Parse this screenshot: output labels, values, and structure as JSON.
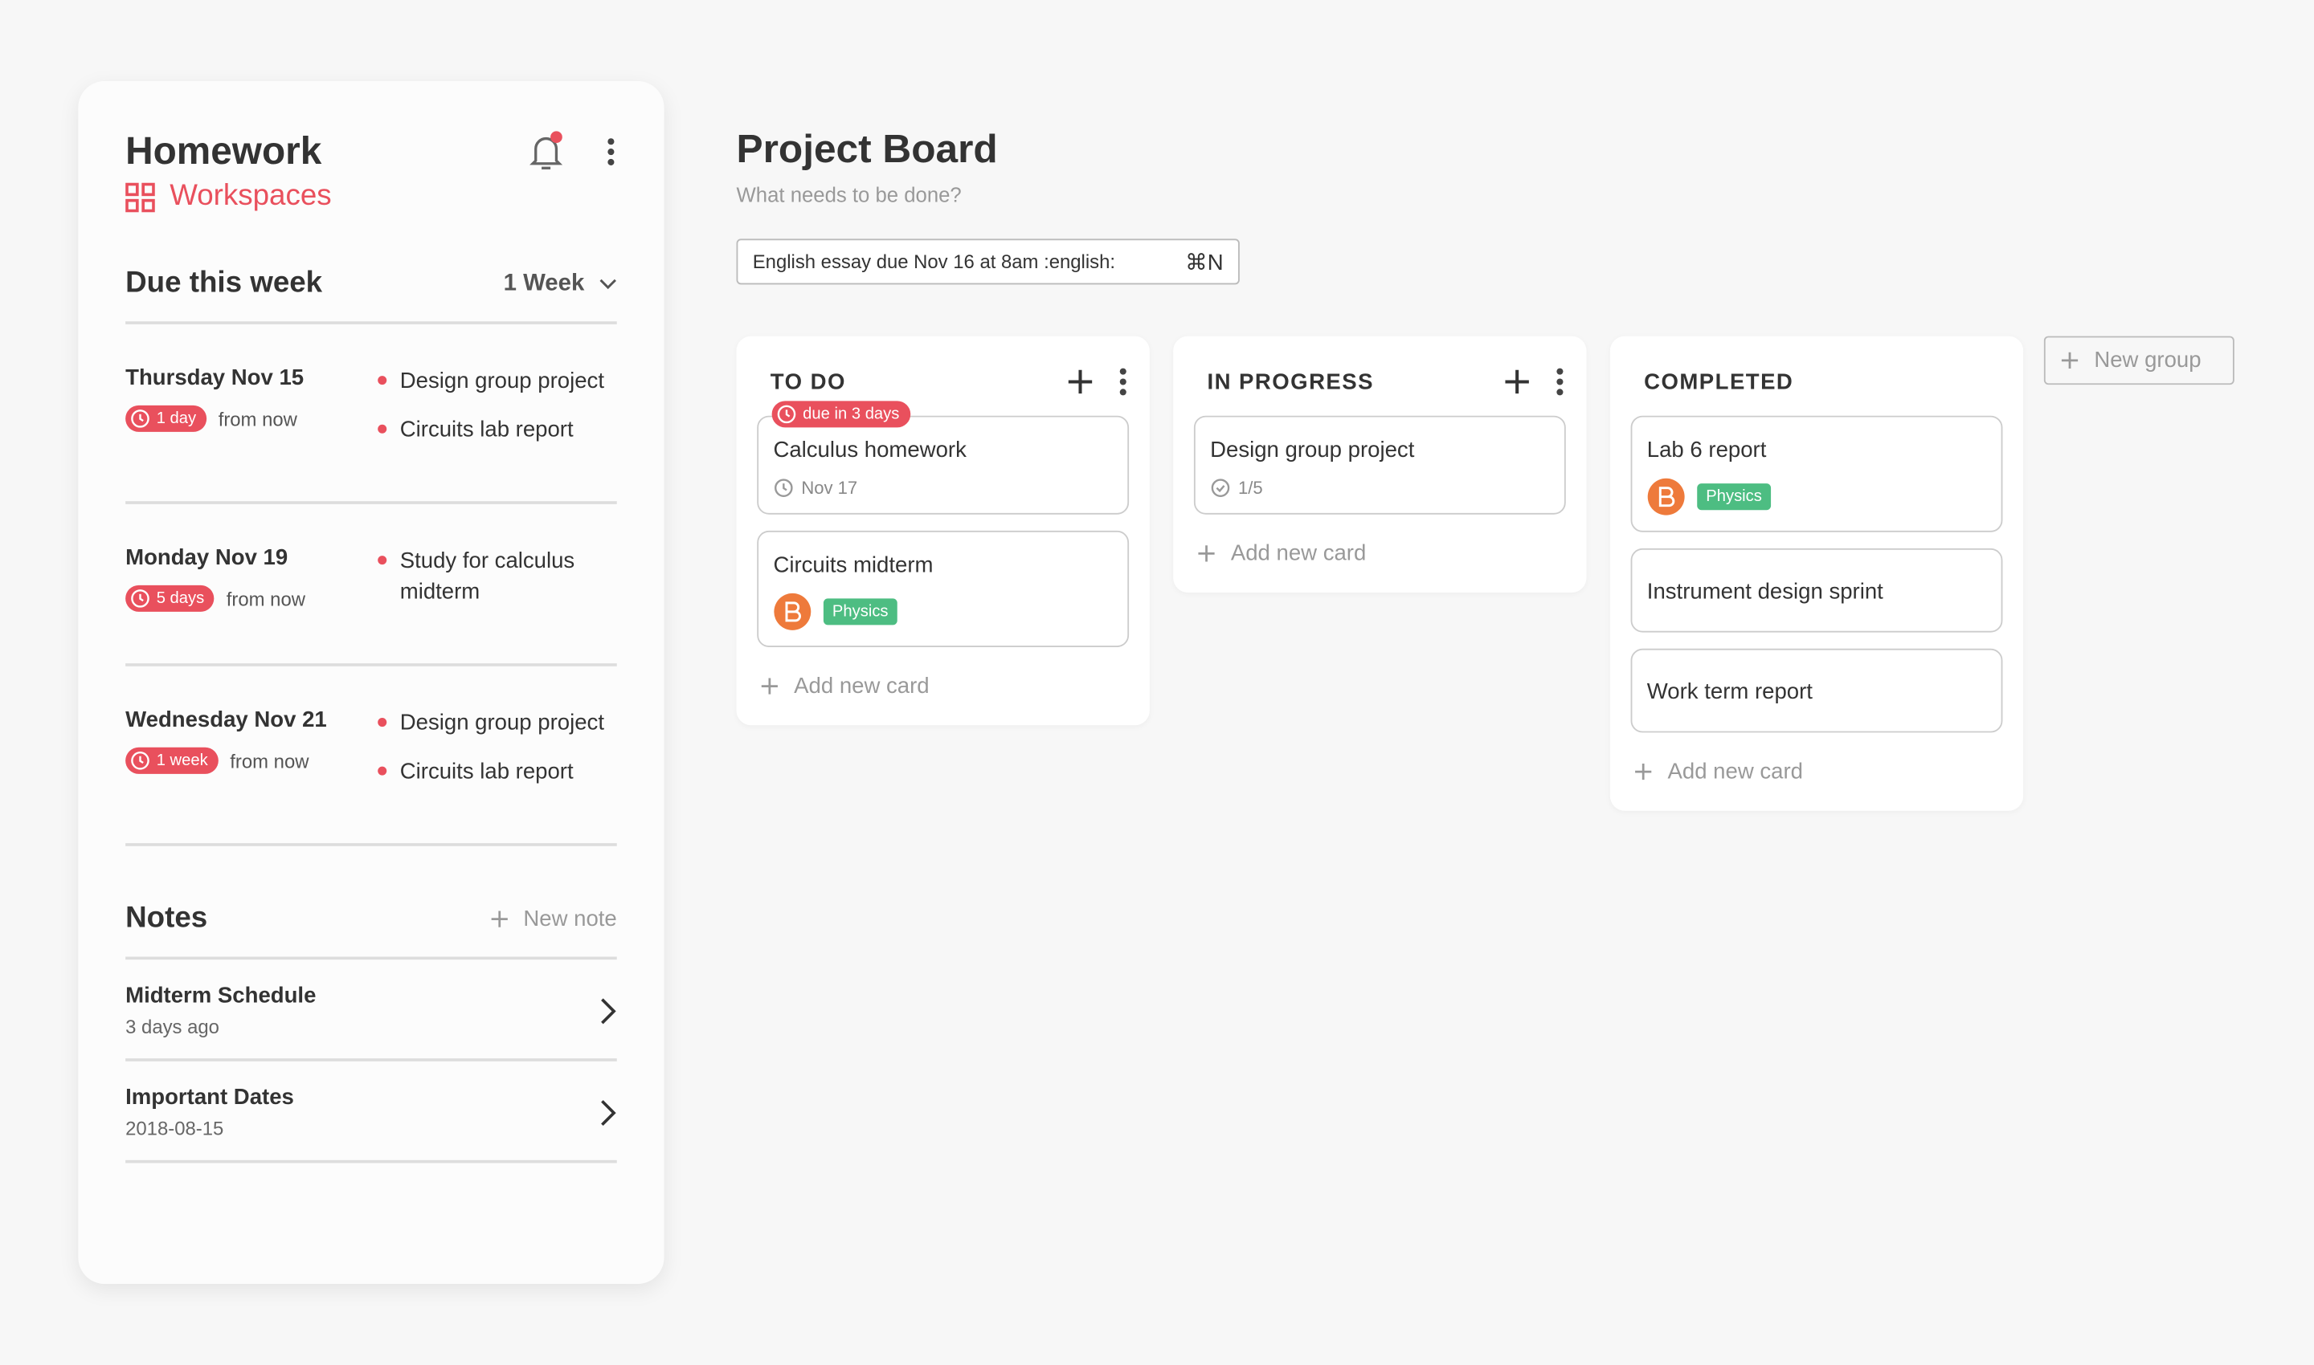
{
  "sidebar": {
    "title": "Homework",
    "workspaces": "Workspaces",
    "due_title": "Due this week",
    "range": "1 Week",
    "days": [
      {
        "date": "Thursday Nov 15",
        "badge": "1 day",
        "suffix": "from now",
        "items": [
          "Design group project",
          "Circuits lab report"
        ]
      },
      {
        "date": "Monday Nov 19",
        "badge": "5 days",
        "suffix": "from now",
        "items": [
          "Study for calculus midterm"
        ]
      },
      {
        "date": "Wednesday Nov 21",
        "badge": "1 week",
        "suffix": "from now",
        "items": [
          "Design group project",
          "Circuits lab report"
        ]
      }
    ],
    "notes": {
      "title": "Notes",
      "new": "New note",
      "items": [
        {
          "title": "Midterm Schedule",
          "meta": "3 days ago"
        },
        {
          "title": "Important Dates",
          "meta": "2018-08-15"
        }
      ]
    }
  },
  "board": {
    "title": "Project Board",
    "subtitle": "What needs to be done?",
    "input": "English essay due Nov 16 at 8am :english:",
    "shortcut": "⌘N",
    "new_group": "New group",
    "columns": [
      {
        "title": "TO DO",
        "cards": [
          {
            "due": "due in 3 days",
            "title": "Calculus homework",
            "meta": "Nov 17"
          },
          {
            "title": "Circuits midterm",
            "tag": "Physics"
          }
        ],
        "add": "Add new card"
      },
      {
        "title": "IN PROGRESS",
        "cards": [
          {
            "title": "Design group project",
            "meta": "1/5"
          }
        ],
        "add": "Add new card"
      },
      {
        "title": "COMPLETED",
        "cards": [
          {
            "title": "Lab 6 report",
            "tag": "Physics"
          },
          {
            "title": "Instrument design sprint"
          },
          {
            "title": "Work term report"
          }
        ],
        "add": "Add new card"
      }
    ]
  }
}
